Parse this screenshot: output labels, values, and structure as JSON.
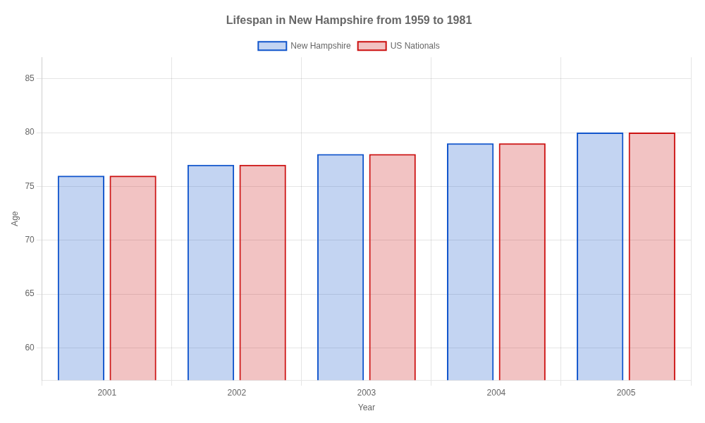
{
  "chart_data": {
    "type": "bar",
    "title": "Lifespan in New Hampshire from 1959 to 1981",
    "x_label": "Year",
    "y_label": "Age",
    "categories": [
      "2001",
      "2002",
      "2003",
      "2004",
      "2005"
    ],
    "series": [
      {
        "name": "New Hampshire",
        "color": "#1155cc",
        "values": [
          76,
          77,
          78,
          79,
          80
        ]
      },
      {
        "name": "US Nationals",
        "color": "#cc1111",
        "values": [
          76,
          77,
          78,
          79,
          80
        ]
      }
    ],
    "ylim": [
      57,
      87
    ],
    "yticks": [
      60,
      65,
      70,
      75,
      80,
      85
    ],
    "grid": true,
    "legend": "top"
  }
}
